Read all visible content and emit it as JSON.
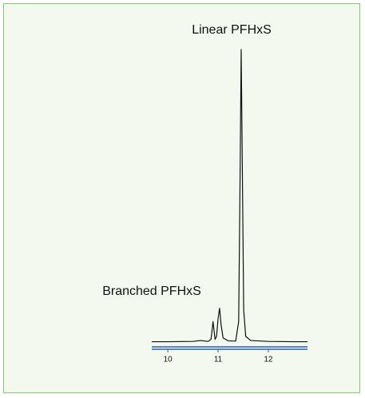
{
  "chart_data": {
    "type": "line",
    "annotations": [
      "Linear PFHxS",
      "Branched PFHxS"
    ],
    "x": [
      9.68,
      10.0,
      10.5,
      10.65,
      10.8,
      10.86,
      10.88,
      10.9,
      10.92,
      10.94,
      10.97,
      11.0,
      11.03,
      11.06,
      11.1,
      11.2,
      11.35,
      11.41,
      11.44,
      11.46,
      11.48,
      11.51,
      11.55,
      11.65,
      12.0,
      12.5,
      12.78
    ],
    "series": [
      {
        "color": "#111111",
        "values": [
          1.2,
          1.2,
          1.3,
          1.6,
          1.3,
          2,
          5,
          8,
          5,
          2,
          3,
          9,
          12.5,
          7,
          2.5,
          1.5,
          1.4,
          8,
          60,
          100,
          65,
          12,
          3,
          1.6,
          1.3,
          1.2,
          1.2
        ]
      }
    ],
    "xlim": [
      9.68,
      12.78
    ],
    "xticks": [
      10,
      11,
      12
    ],
    "ylim": [
      0,
      100
    ]
  }
}
